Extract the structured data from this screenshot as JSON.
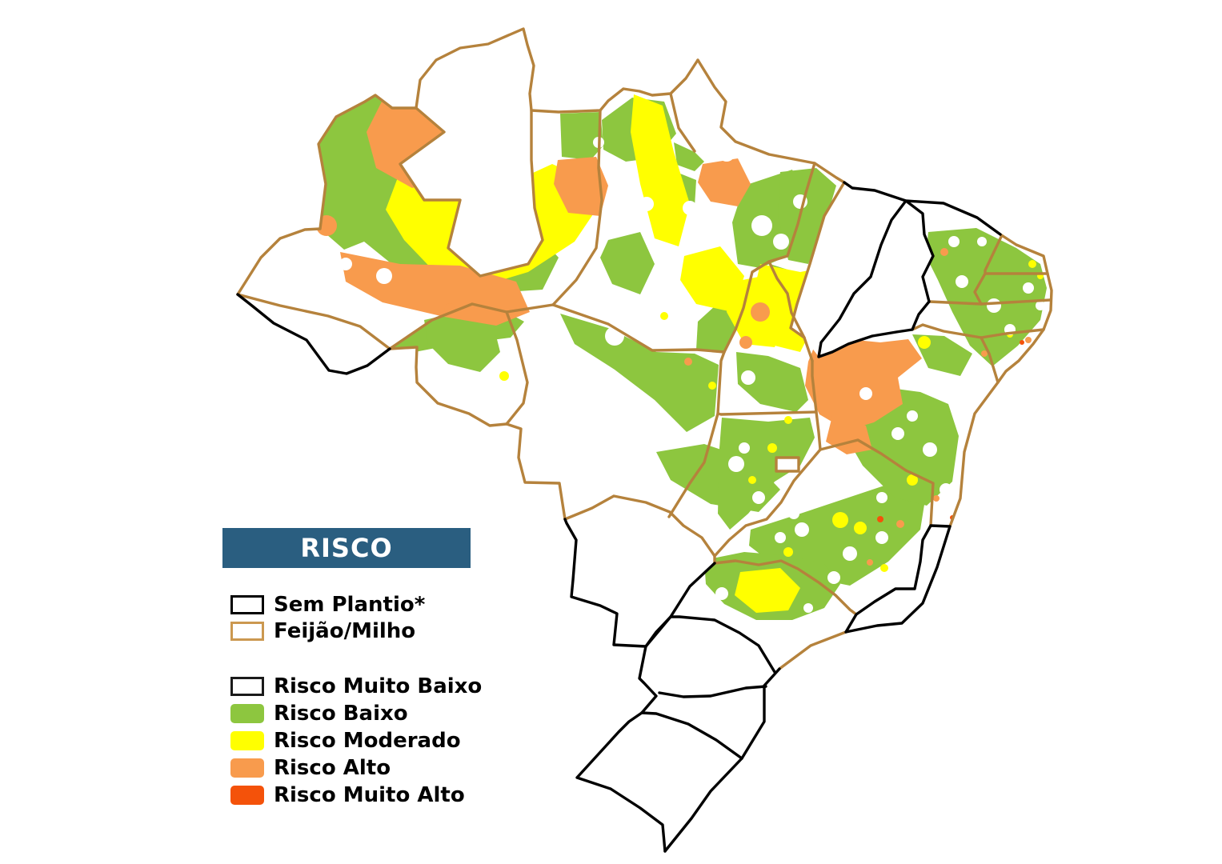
{
  "page": {
    "kind": "choropleth-risk-map",
    "background": "#ffffff"
  },
  "legend": {
    "title": "RISCO",
    "boundary_items": [
      {
        "id": "sem-plantio",
        "label": "Sem Plantio*",
        "swatch_fill": "#ffffff",
        "swatch_border": "#000000",
        "rounded": false
      },
      {
        "id": "feijao-milho",
        "label": "Feijão/Milho",
        "swatch_fill": "#ffffff",
        "swatch_border": "#cb9850",
        "rounded": false
      }
    ],
    "risk_items": [
      {
        "id": "risco-muito-baixo",
        "label": "Risco Muito Baixo",
        "swatch_fill": "#ffffff",
        "swatch_border": "#1a1a1a",
        "rounded": false
      },
      {
        "id": "risco-baixo",
        "label": "Risco Baixo",
        "swatch_fill": "#8dc63f",
        "swatch_border": "none",
        "rounded": true
      },
      {
        "id": "risco-moderado",
        "label": "Risco Moderado",
        "swatch_fill": "#ffff00",
        "swatch_border": "none",
        "rounded": true
      },
      {
        "id": "risco-alto",
        "label": "Risco Alto",
        "swatch_fill": "#f89b4d",
        "swatch_border": "none",
        "rounded": true
      },
      {
        "id": "risco-muito-alto",
        "label": "Risco Muito Alto",
        "swatch_fill": "#f4520a",
        "swatch_border": "none",
        "rounded": true
      }
    ]
  },
  "colors": {
    "banner_blue": "#2a5e80",
    "risk_low_green": "#8dc63f",
    "risk_moderate_yellow": "#ffff00",
    "risk_high_orange": "#f89b4d",
    "risk_very_high_red": "#f4520a",
    "planted_border_tan": "#b5823c",
    "unplanted_border_black": "#000000"
  }
}
